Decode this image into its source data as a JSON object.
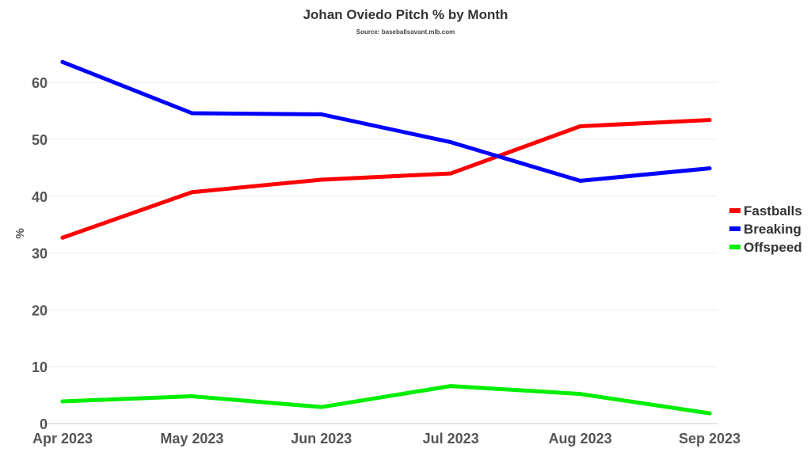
{
  "chart_data": {
    "type": "line",
    "title": "Johan Oviedo Pitch % by Month",
    "subtitle": "Source: baseballsavant.mlb.com",
    "xlabel": "",
    "ylabel": "%",
    "categories": [
      "Apr 2023",
      "May 2023",
      "Jun 2023",
      "Jul 2023",
      "Aug 2023",
      "Sep 2023"
    ],
    "ylim": [
      0,
      66
    ],
    "yticks": [
      0,
      10,
      20,
      30,
      40,
      50,
      60
    ],
    "grid": true,
    "legend_position": "right",
    "series": [
      {
        "name": "Fastballs",
        "color": "#ff0000",
        "values": [
          32.7,
          40.7,
          42.9,
          44.0,
          52.3,
          53.4
        ]
      },
      {
        "name": "Breaking",
        "color": "#0000ff",
        "values": [
          63.6,
          54.6,
          54.4,
          49.5,
          42.7,
          44.9
        ]
      },
      {
        "name": "Offspeed",
        "color": "#00ee00",
        "values": [
          3.9,
          4.8,
          2.9,
          6.6,
          5.2,
          1.8
        ]
      }
    ]
  }
}
